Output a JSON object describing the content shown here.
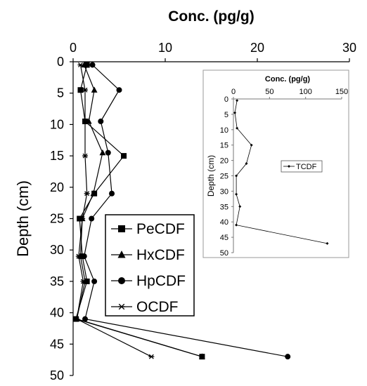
{
  "chart_data": [
    {
      "type": "line",
      "title": "",
      "xlabel": "Conc. (pg/g)",
      "ylabel": "Depth (cm)",
      "x_axis_position": "top",
      "y_axis_reversed": true,
      "xlim": [
        0,
        30
      ],
      "ylim": [
        0,
        50
      ],
      "x_ticks": [
        "0",
        "10",
        "20",
        "30"
      ],
      "y_ticks": [
        "0",
        "5",
        "10",
        "15",
        "20",
        "25",
        "30",
        "35",
        "40",
        "45",
        "50"
      ],
      "grid": false,
      "legend_position": "bottom-center",
      "series": [
        {
          "name": "PeCDF",
          "marker": "square",
          "points": [
            [
              1.5,
              0.5
            ],
            [
              0.8,
              4.5
            ],
            [
              1.3,
              9.5
            ],
            [
              5.5,
              15
            ],
            [
              2.3,
              21
            ],
            [
              0.7,
              25
            ],
            [
              1.0,
              31
            ],
            [
              1.5,
              35
            ],
            [
              0.3,
              41
            ],
            [
              14.0,
              47
            ]
          ]
        },
        {
          "name": "HxCDF",
          "marker": "triangle",
          "points": [
            [
              1.2,
              0.5
            ],
            [
              2.3,
              4.5
            ],
            [
              1.7,
              9.5
            ],
            [
              3.2,
              14.5
            ],
            [
              2.2,
              21
            ],
            [
              1.0,
              25
            ],
            [
              0.8,
              31
            ],
            [
              1.3,
              35
            ],
            [
              0.4,
              41
            ],
            [
              14.0,
              47
            ]
          ]
        },
        {
          "name": "HpCDF",
          "marker": "circle",
          "points": [
            [
              2.1,
              0.5
            ],
            [
              5.0,
              4.5
            ],
            [
              3.0,
              9.5
            ],
            [
              3.8,
              14.5
            ],
            [
              4.2,
              21
            ],
            [
              2.0,
              25
            ],
            [
              1.2,
              31
            ],
            [
              2.3,
              35
            ],
            [
              1.3,
              41
            ],
            [
              23.3,
              47
            ]
          ]
        },
        {
          "name": "OCDF",
          "marker": "asterisk",
          "points": [
            [
              0.8,
              0.5
            ],
            [
              1.3,
              4.5
            ],
            [
              1.3,
              9.5
            ],
            [
              1.3,
              15
            ],
            [
              1.5,
              21
            ],
            [
              1.0,
              25
            ],
            [
              0.6,
              31
            ],
            [
              1.1,
              35
            ],
            [
              0.4,
              41
            ],
            [
              8.5,
              47
            ]
          ]
        }
      ]
    },
    {
      "type": "line",
      "title": "",
      "xlabel": "Conc. (pg/g)",
      "ylabel": "Depth (cm)",
      "x_axis_position": "top",
      "y_axis_reversed": true,
      "xlim": [
        0,
        150
      ],
      "ylim": [
        0,
        50
      ],
      "x_ticks": [
        "0",
        "50",
        "100",
        "150"
      ],
      "y_ticks": [
        "0",
        "5",
        "10",
        "15",
        "20",
        "25",
        "30",
        "35",
        "40",
        "45",
        "50"
      ],
      "grid": false,
      "legend_position": "right",
      "series": [
        {
          "name": "TCDF",
          "marker": "small-diamond",
          "points": [
            [
              5,
              0.5
            ],
            [
              2,
              4.5
            ],
            [
              5,
              9.5
            ],
            [
              25,
              15
            ],
            [
              18,
              21
            ],
            [
              4,
              25
            ],
            [
              4,
              31
            ],
            [
              9,
              35
            ],
            [
              4,
              41
            ],
            [
              130,
              47
            ]
          ]
        }
      ]
    }
  ]
}
